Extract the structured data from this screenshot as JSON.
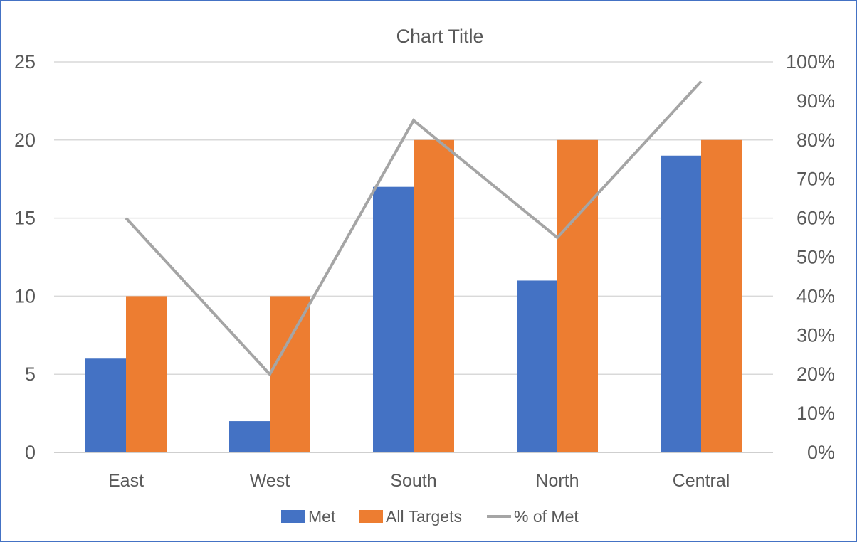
{
  "chart_data": {
    "type": "bar",
    "title": "Chart Title",
    "categories": [
      "East",
      "West",
      "South",
      "North",
      "Central"
    ],
    "series": [
      {
        "name": "Met",
        "type": "bar",
        "axis": "left",
        "values": [
          6,
          2,
          17,
          11,
          19
        ],
        "color": "#4472c4"
      },
      {
        "name": "All Targets",
        "type": "bar",
        "axis": "left",
        "values": [
          10,
          10,
          20,
          20,
          20
        ],
        "color": "#ed7d31"
      },
      {
        "name": "% of Met",
        "type": "line",
        "axis": "right",
        "values": [
          0.6,
          0.2,
          0.85,
          0.55,
          0.95
        ],
        "color": "#a5a5a5"
      }
    ],
    "y_left": {
      "range": [
        0,
        25
      ],
      "ticks": [
        0,
        5,
        10,
        15,
        20,
        25
      ],
      "tick_labels": [
        "0",
        "5",
        "10",
        "15",
        "20",
        "25"
      ]
    },
    "y_right": {
      "range": [
        0,
        1
      ],
      "ticks": [
        0,
        0.1,
        0.2,
        0.3,
        0.4,
        0.5,
        0.6,
        0.7,
        0.8,
        0.9,
        1.0
      ],
      "tick_labels": [
        "0%",
        "10%",
        "20%",
        "30%",
        "40%",
        "50%",
        "60%",
        "70%",
        "80%",
        "90%",
        "100%"
      ]
    },
    "xlabel": "",
    "ylabel": "",
    "grid": "horizontal",
    "legend": "bottom"
  }
}
